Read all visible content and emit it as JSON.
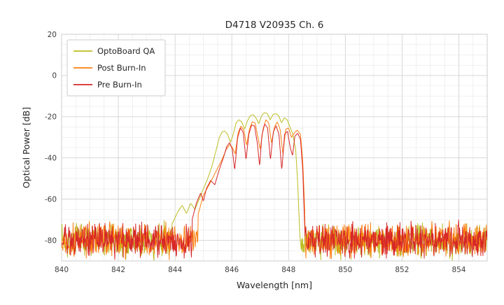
{
  "chart_data": {
    "type": "line",
    "title": "D4718 V20935 Ch. 6",
    "xlabel": "Wavelength [nm]",
    "ylabel": "Optical Power [dB]",
    "xlim": [
      840,
      855
    ],
    "ylim": [
      -90,
      20
    ],
    "x_major_ticks": [
      840,
      842,
      844,
      846,
      848,
      850,
      852,
      854
    ],
    "y_major_ticks": [
      20,
      0,
      -20,
      -40,
      -60,
      -80
    ],
    "x_minor_step": 0.5,
    "y_minor_step": 5,
    "grid": true,
    "legend_position": "upper left",
    "series": [
      {
        "name": "OptoBoard QA",
        "color": "#bcbd22",
        "noise_floor": -80,
        "noise_spread": 13,
        "seed": 7,
        "peak_points": [
          [
            843.9,
            -72
          ],
          [
            844.1,
            -66
          ],
          [
            844.25,
            -63
          ],
          [
            844.4,
            -67
          ],
          [
            844.55,
            -62
          ],
          [
            844.7,
            -65
          ],
          [
            844.85,
            -60
          ],
          [
            845.0,
            -55
          ],
          [
            845.15,
            -50
          ],
          [
            845.3,
            -44
          ],
          [
            845.45,
            -36
          ],
          [
            845.55,
            -30.5
          ],
          [
            845.65,
            -27.5
          ],
          [
            845.75,
            -27
          ],
          [
            845.85,
            -28.5
          ],
          [
            845.95,
            -32.5
          ],
          [
            846.05,
            -28.5
          ],
          [
            846.15,
            -23
          ],
          [
            846.25,
            -21.5
          ],
          [
            846.35,
            -22.5
          ],
          [
            846.45,
            -26
          ],
          [
            846.55,
            -22
          ],
          [
            846.65,
            -19.5
          ],
          [
            846.75,
            -19
          ],
          [
            846.85,
            -20.5
          ],
          [
            846.95,
            -23.5
          ],
          [
            847.05,
            -19.5
          ],
          [
            847.15,
            -18
          ],
          [
            847.25,
            -18.5
          ],
          [
            847.35,
            -21.5
          ],
          [
            847.45,
            -19
          ],
          [
            847.55,
            -18.5
          ],
          [
            847.65,
            -19.5
          ],
          [
            847.75,
            -23
          ],
          [
            847.85,
            -20.5
          ],
          [
            847.95,
            -21.5
          ],
          [
            848.05,
            -25
          ],
          [
            848.15,
            -28.5
          ],
          [
            848.25,
            -36
          ],
          [
            848.32,
            -52
          ],
          [
            848.38,
            -72
          ],
          [
            848.42,
            -86
          ]
        ]
      },
      {
        "name": "Post Burn-In",
        "color": "#ff7f0e",
        "noise_floor": -80,
        "noise_spread": 13,
        "seed": 13,
        "peak_points": [
          [
            844.8,
            -68
          ],
          [
            845.0,
            -58
          ],
          [
            845.2,
            -53
          ],
          [
            845.35,
            -49
          ],
          [
            845.5,
            -45
          ],
          [
            845.65,
            -41
          ],
          [
            845.8,
            -36
          ],
          [
            845.92,
            -33.5
          ],
          [
            846.02,
            -35
          ],
          [
            846.12,
            -38
          ],
          [
            846.22,
            -28
          ],
          [
            846.32,
            -24.5
          ],
          [
            846.42,
            -26.5
          ],
          [
            846.52,
            -34
          ],
          [
            846.62,
            -26
          ],
          [
            846.72,
            -22.5
          ],
          [
            846.82,
            -23
          ],
          [
            846.92,
            -30
          ],
          [
            847.0,
            -36
          ],
          [
            847.1,
            -26
          ],
          [
            847.2,
            -21.5
          ],
          [
            847.3,
            -23
          ],
          [
            847.4,
            -33
          ],
          [
            847.5,
            -25
          ],
          [
            847.6,
            -22.5
          ],
          [
            847.7,
            -26
          ],
          [
            847.8,
            -38
          ],
          [
            847.9,
            -26
          ],
          [
            848.0,
            -25.5
          ],
          [
            848.1,
            -30
          ],
          [
            848.2,
            -28
          ],
          [
            848.3,
            -26.5
          ],
          [
            848.42,
            -28.5
          ],
          [
            848.5,
            -42
          ],
          [
            848.56,
            -62
          ],
          [
            848.6,
            -86
          ]
        ]
      },
      {
        "name": "Pre Burn-In",
        "color": "#d62728",
        "noise_floor": -80,
        "noise_spread": 13,
        "seed": 29,
        "peak_points": [
          [
            844.6,
            -70
          ],
          [
            844.75,
            -62
          ],
          [
            844.9,
            -57
          ],
          [
            845.0,
            -61
          ],
          [
            845.1,
            -55
          ],
          [
            845.25,
            -51
          ],
          [
            845.4,
            -53
          ],
          [
            845.55,
            -46
          ],
          [
            845.7,
            -40
          ],
          [
            845.82,
            -34.5
          ],
          [
            845.92,
            -32.5
          ],
          [
            846.02,
            -36
          ],
          [
            846.1,
            -46
          ],
          [
            846.2,
            -30.5
          ],
          [
            846.3,
            -25.5
          ],
          [
            846.4,
            -27.5
          ],
          [
            846.5,
            -41
          ],
          [
            846.6,
            -28.5
          ],
          [
            846.7,
            -24
          ],
          [
            846.8,
            -24.5
          ],
          [
            846.9,
            -33
          ],
          [
            846.98,
            -44
          ],
          [
            847.06,
            -29
          ],
          [
            847.16,
            -23.5
          ],
          [
            847.26,
            -25.5
          ],
          [
            847.36,
            -41
          ],
          [
            847.46,
            -27.5
          ],
          [
            847.56,
            -24.5
          ],
          [
            847.66,
            -28.5
          ],
          [
            847.76,
            -46
          ],
          [
            847.86,
            -28.5
          ],
          [
            847.96,
            -27
          ],
          [
            848.06,
            -35
          ],
          [
            848.14,
            -39
          ],
          [
            848.22,
            -29.5
          ],
          [
            848.32,
            -28
          ],
          [
            848.42,
            -31
          ],
          [
            848.5,
            -46
          ],
          [
            848.55,
            -66
          ],
          [
            848.6,
            -86
          ]
        ]
      }
    ],
    "colors": {
      "grid_major": "#d3d3d3",
      "grid_minor": "#e7e7e7",
      "spine": "#cccccc",
      "background": "#ffffff"
    }
  }
}
